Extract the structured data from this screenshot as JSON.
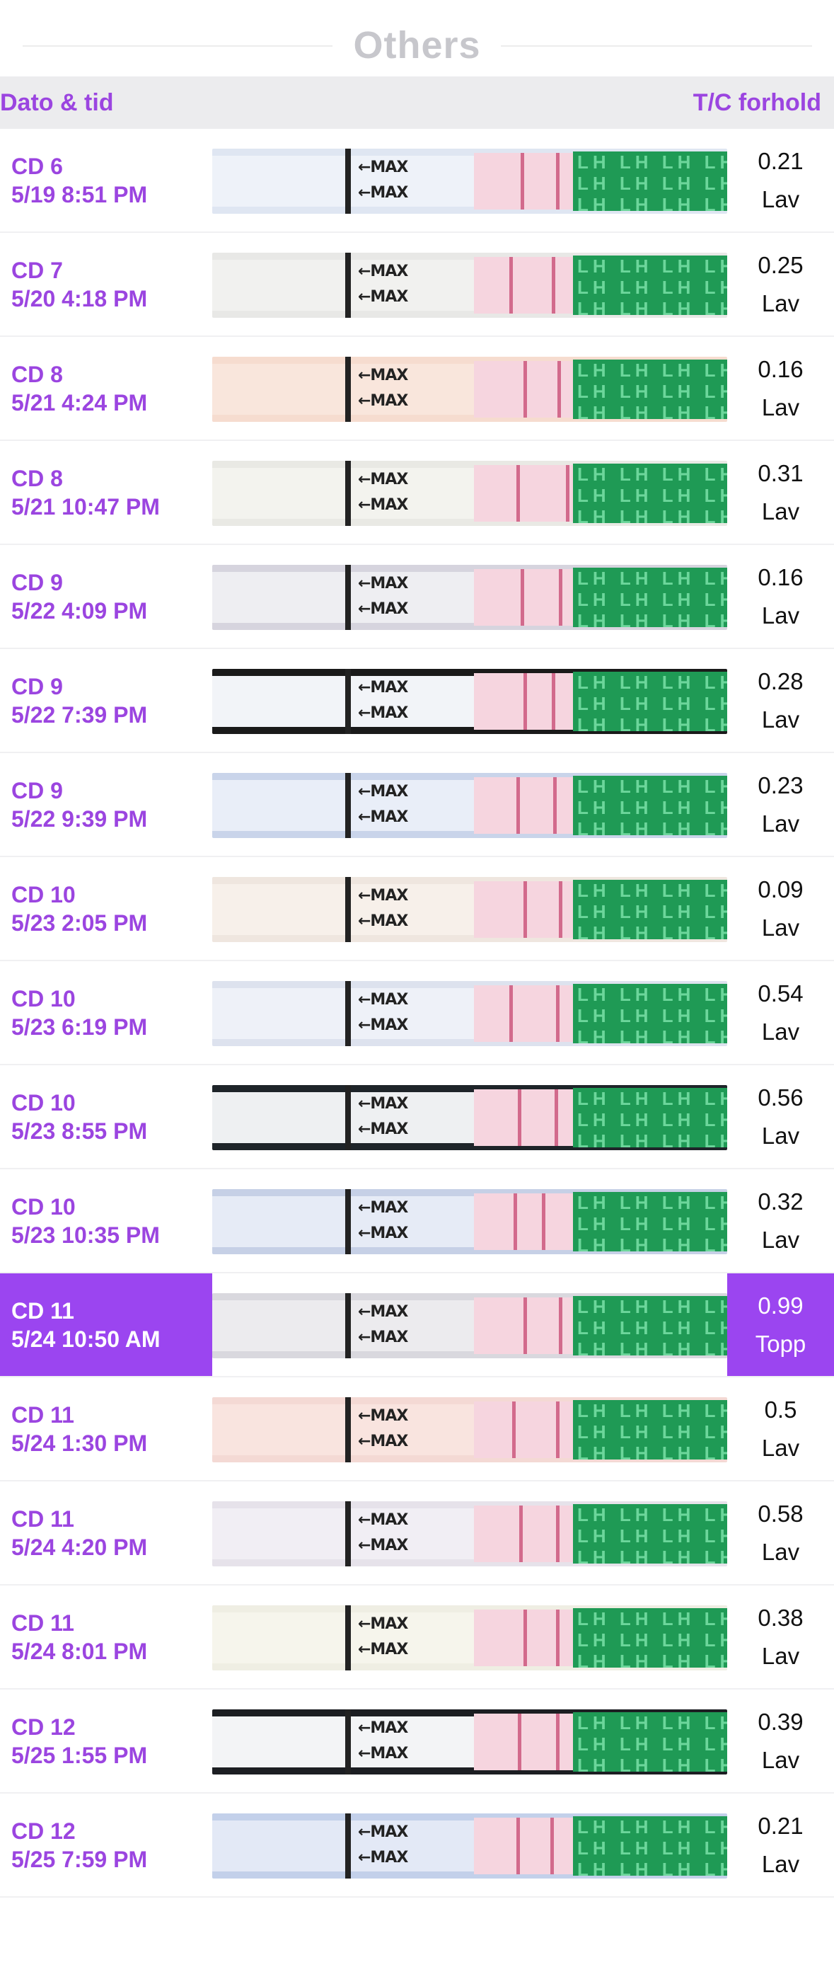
{
  "section": {
    "title": "Others"
  },
  "table_header": {
    "date_label": "Dato & tid",
    "ratio_label": "T/C forhold"
  },
  "strip_text": {
    "max": "←MAX",
    "lh": "LH LH LH LH LH LH LH LH"
  },
  "colors": {
    "accent": "#9b45f0",
    "strip_green": "#1f9a55",
    "test_line": "#d26a8c"
  },
  "rows": [
    {
      "cycle_day": "CD 6",
      "datetime": "5/19 8:51 PM",
      "ratio": "0.21",
      "level": "Lav",
      "selected": false
    },
    {
      "cycle_day": "CD 7",
      "datetime": "5/20 4:18 PM",
      "ratio": "0.25",
      "level": "Lav",
      "selected": false
    },
    {
      "cycle_day": "CD 8",
      "datetime": "5/21 4:24 PM",
      "ratio": "0.16",
      "level": "Lav",
      "selected": false
    },
    {
      "cycle_day": "CD 8",
      "datetime": "5/21 10:47 PM",
      "ratio": "0.31",
      "level": "Lav",
      "selected": false
    },
    {
      "cycle_day": "CD 9",
      "datetime": "5/22 4:09 PM",
      "ratio": "0.16",
      "level": "Lav",
      "selected": false
    },
    {
      "cycle_day": "CD 9",
      "datetime": "5/22 7:39 PM",
      "ratio": "0.28",
      "level": "Lav",
      "selected": false
    },
    {
      "cycle_day": "CD 9",
      "datetime": "5/22 9:39 PM",
      "ratio": "0.23",
      "level": "Lav",
      "selected": false
    },
    {
      "cycle_day": "CD 10",
      "datetime": "5/23 2:05 PM",
      "ratio": "0.09",
      "level": "Lav",
      "selected": false
    },
    {
      "cycle_day": "CD 10",
      "datetime": "5/23 6:19 PM",
      "ratio": "0.54",
      "level": "Lav",
      "selected": false
    },
    {
      "cycle_day": "CD 10",
      "datetime": "5/23 8:55 PM",
      "ratio": "0.56",
      "level": "Lav",
      "selected": false
    },
    {
      "cycle_day": "CD 10",
      "datetime": "5/23 10:35 PM",
      "ratio": "0.32",
      "level": "Lav",
      "selected": false
    },
    {
      "cycle_day": "CD 11",
      "datetime": "5/24 10:50 AM",
      "ratio": "0.99",
      "level": "Topp",
      "selected": true
    },
    {
      "cycle_day": "CD 11",
      "datetime": "5/24 1:30 PM",
      "ratio": "0.5",
      "level": "Lav",
      "selected": false
    },
    {
      "cycle_day": "CD 11",
      "datetime": "5/24 4:20 PM",
      "ratio": "0.58",
      "level": "Lav",
      "selected": false
    },
    {
      "cycle_day": "CD 11",
      "datetime": "5/24 8:01 PM",
      "ratio": "0.38",
      "level": "Lav",
      "selected": false
    },
    {
      "cycle_day": "CD 12",
      "datetime": "5/25 1:55 PM",
      "ratio": "0.39",
      "level": "Lav",
      "selected": false
    },
    {
      "cycle_day": "CD 12",
      "datetime": "5/25 7:59 PM",
      "ratio": "0.21",
      "level": "Lav",
      "selected": false
    }
  ]
}
